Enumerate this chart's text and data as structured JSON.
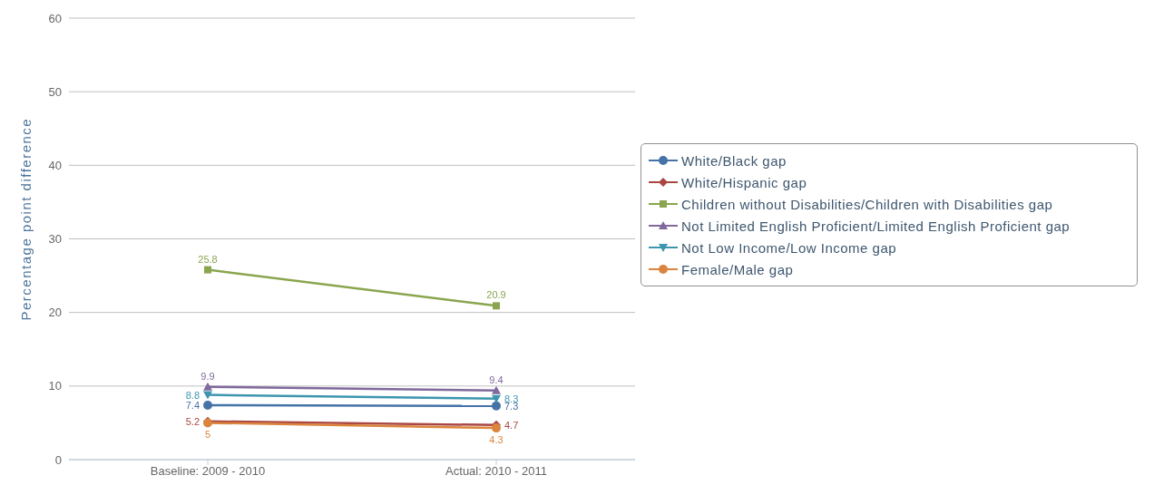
{
  "chart_data": {
    "type": "line",
    "ylabel": "Percentage point difference",
    "categories": [
      "Baseline: 2009 - 2010",
      "Actual: 2010 - 2011"
    ],
    "series": [
      {
        "name": "White/Black gap",
        "color": "#4572a7",
        "marker": "circle",
        "values": [
          7.4,
          7.3
        ]
      },
      {
        "name": "White/Hispanic gap",
        "color": "#aa4643",
        "marker": "diamond",
        "values": [
          5.2,
          4.7
        ]
      },
      {
        "name": "Children without Disabilities/Children with Disabilities gap",
        "color": "#89a54e",
        "marker": "square",
        "values": [
          25.8,
          20.9
        ]
      },
      {
        "name": "Not Limited English Proficient/Limited English Proficient gap",
        "color": "#80699b",
        "marker": "triangle",
        "values": [
          9.9,
          9.4
        ]
      },
      {
        "name": "Not Low Income/Low Income gap",
        "color": "#3d96ae",
        "marker": "triangle-down",
        "values": [
          8.8,
          8.3
        ]
      },
      {
        "name": "Female/Male gap",
        "color": "#db843d",
        "marker": "circle",
        "values": [
          5,
          4.3
        ]
      }
    ],
    "ylim": [
      0,
      60
    ],
    "yticks": [
      0,
      10,
      20,
      30,
      40,
      50,
      60
    ],
    "grid": "y",
    "legend": "right",
    "data_labels": true
  }
}
